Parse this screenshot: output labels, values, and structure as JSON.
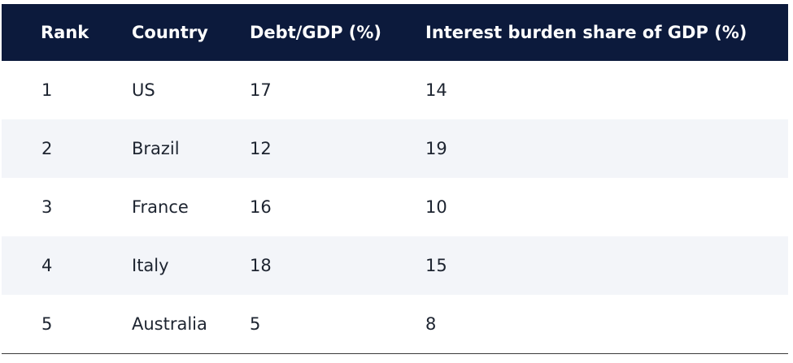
{
  "table": {
    "headers": {
      "rank": "Rank",
      "country": "Country",
      "debt_gdp": "Debt/GDP (%)",
      "interest_burden": "Interest burden share of GDP (%)"
    },
    "rows": [
      {
        "rank": "1",
        "country": "US",
        "debt_gdp": "17",
        "interest_burden": "14"
      },
      {
        "rank": "2",
        "country": "Brazil",
        "debt_gdp": "12",
        "interest_burden": "19"
      },
      {
        "rank": "3",
        "country": "France",
        "debt_gdp": "16",
        "interest_burden": "10"
      },
      {
        "rank": "4",
        "country": "Italy",
        "debt_gdp": "18",
        "interest_burden": "15"
      },
      {
        "rank": "5",
        "country": "Australia",
        "debt_gdp": "5",
        "interest_burden": "8"
      }
    ]
  },
  "colors": {
    "header_background": "#0c1a3c",
    "header_text": "#ffffff",
    "stripe_background": "#f3f5f9",
    "body_text": "#1d2430"
  }
}
